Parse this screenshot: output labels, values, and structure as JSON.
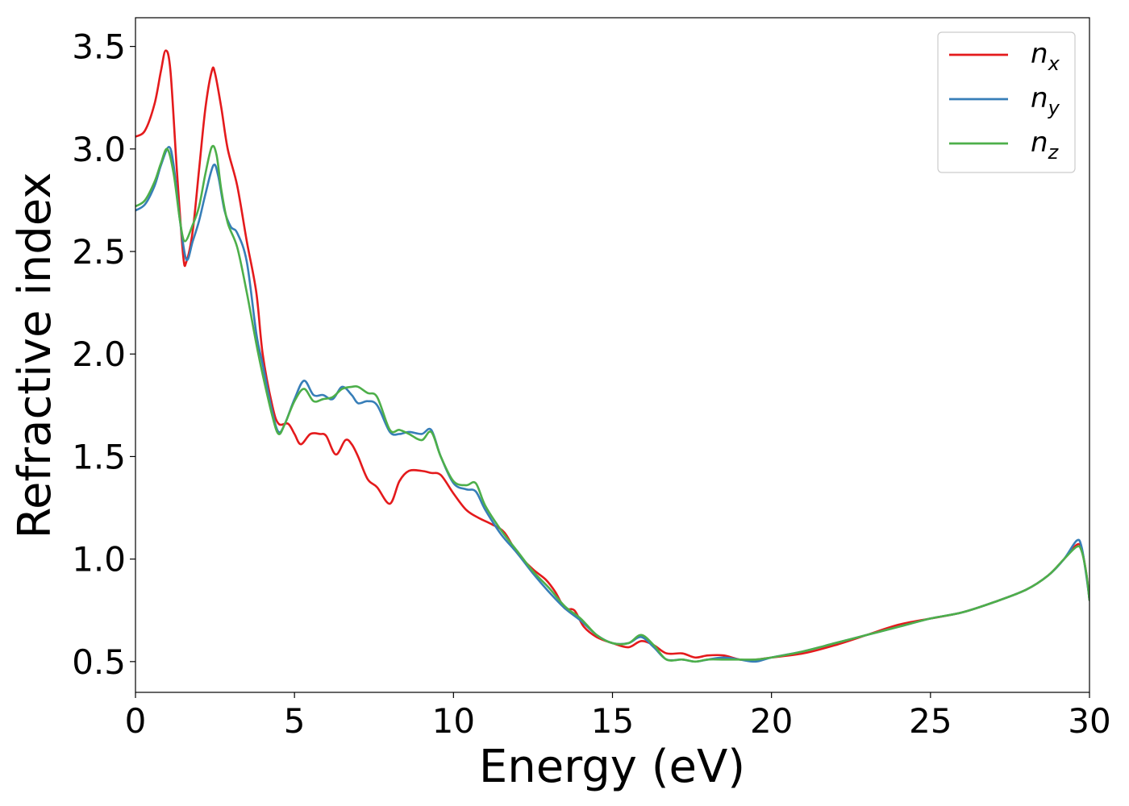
{
  "chart_data": {
    "type": "line",
    "title": "",
    "xlabel": "Energy (eV)",
    "ylabel": "Refractive index",
    "xlim": [
      0,
      30
    ],
    "ylim": [
      0.35,
      3.64
    ],
    "xticks": [
      0,
      5,
      10,
      15,
      20,
      25,
      30
    ],
    "xtick_labels": [
      "0",
      "5",
      "10",
      "15",
      "20",
      "25",
      "30"
    ],
    "yticks": [
      0.5,
      1.0,
      1.5,
      2.0,
      2.5,
      3.0,
      3.5
    ],
    "ytick_labels": [
      "0.5",
      "1.0",
      "1.5",
      "2.0",
      "2.5",
      "3.0",
      "3.5"
    ],
    "grid": false,
    "legend_position": "top-right",
    "series": [
      {
        "name": "n_x",
        "legend_base": "n",
        "legend_sub": "x",
        "color": "#e41a1c",
        "points": [
          [
            0,
            3.06
          ],
          [
            0.3,
            3.09
          ],
          [
            0.6,
            3.22
          ],
          [
            0.8,
            3.38
          ],
          [
            0.95,
            3.48
          ],
          [
            1.1,
            3.38
          ],
          [
            1.3,
            2.9
          ],
          [
            1.5,
            2.48
          ],
          [
            1.6,
            2.45
          ],
          [
            1.8,
            2.6
          ],
          [
            2.0,
            2.9
          ],
          [
            2.2,
            3.2
          ],
          [
            2.4,
            3.38
          ],
          [
            2.5,
            3.37
          ],
          [
            2.7,
            3.2
          ],
          [
            2.9,
            3.0
          ],
          [
            3.2,
            2.82
          ],
          [
            3.5,
            2.55
          ],
          [
            3.8,
            2.3
          ],
          [
            4.0,
            2.0
          ],
          [
            4.3,
            1.75
          ],
          [
            4.5,
            1.66
          ],
          [
            4.8,
            1.66
          ],
          [
            5.0,
            1.61
          ],
          [
            5.2,
            1.56
          ],
          [
            5.5,
            1.61
          ],
          [
            5.8,
            1.61
          ],
          [
            6.0,
            1.6
          ],
          [
            6.3,
            1.51
          ],
          [
            6.6,
            1.58
          ],
          [
            6.8,
            1.56
          ],
          [
            7.0,
            1.5
          ],
          [
            7.3,
            1.39
          ],
          [
            7.6,
            1.35
          ],
          [
            8.0,
            1.27
          ],
          [
            8.3,
            1.38
          ],
          [
            8.6,
            1.43
          ],
          [
            9.0,
            1.43
          ],
          [
            9.3,
            1.42
          ],
          [
            9.6,
            1.41
          ],
          [
            10.0,
            1.32
          ],
          [
            10.4,
            1.24
          ],
          [
            10.8,
            1.2
          ],
          [
            11.2,
            1.17
          ],
          [
            11.6,
            1.13
          ],
          [
            12.0,
            1.03
          ],
          [
            12.5,
            0.95
          ],
          [
            12.9,
            0.9
          ],
          [
            13.2,
            0.84
          ],
          [
            13.5,
            0.76
          ],
          [
            13.8,
            0.75
          ],
          [
            14.1,
            0.67
          ],
          [
            14.5,
            0.62
          ],
          [
            15.0,
            0.59
          ],
          [
            15.5,
            0.57
          ],
          [
            15.9,
            0.6
          ],
          [
            16.3,
            0.58
          ],
          [
            16.7,
            0.54
          ],
          [
            17.2,
            0.54
          ],
          [
            17.6,
            0.52
          ],
          [
            18.0,
            0.53
          ],
          [
            18.5,
            0.53
          ],
          [
            19.0,
            0.51
          ],
          [
            19.5,
            0.51
          ],
          [
            20.0,
            0.52
          ],
          [
            21.0,
            0.54
          ],
          [
            22.0,
            0.58
          ],
          [
            23.0,
            0.63
          ],
          [
            24.0,
            0.68
          ],
          [
            25.0,
            0.71
          ],
          [
            26.0,
            0.74
          ],
          [
            27.0,
            0.79
          ],
          [
            28.0,
            0.85
          ],
          [
            28.7,
            0.92
          ],
          [
            29.2,
            1.0
          ],
          [
            29.6,
            1.07
          ],
          [
            29.75,
            1.05
          ],
          [
            29.9,
            0.93
          ],
          [
            30.0,
            0.8
          ]
        ]
      },
      {
        "name": "n_y",
        "legend_base": "n",
        "legend_sub": "y",
        "color": "#377eb8",
        "points": [
          [
            0,
            2.7
          ],
          [
            0.3,
            2.73
          ],
          [
            0.6,
            2.82
          ],
          [
            0.8,
            2.92
          ],
          [
            1.05,
            3.01
          ],
          [
            1.2,
            2.92
          ],
          [
            1.4,
            2.65
          ],
          [
            1.6,
            2.46
          ],
          [
            1.8,
            2.55
          ],
          [
            2.0,
            2.65
          ],
          [
            2.2,
            2.78
          ],
          [
            2.45,
            2.92
          ],
          [
            2.6,
            2.87
          ],
          [
            2.8,
            2.7
          ],
          [
            3.0,
            2.62
          ],
          [
            3.2,
            2.59
          ],
          [
            3.5,
            2.45
          ],
          [
            3.8,
            2.1
          ],
          [
            4.0,
            1.95
          ],
          [
            4.3,
            1.72
          ],
          [
            4.5,
            1.62
          ],
          [
            4.7,
            1.66
          ],
          [
            5.0,
            1.78
          ],
          [
            5.3,
            1.87
          ],
          [
            5.6,
            1.8
          ],
          [
            5.9,
            1.8
          ],
          [
            6.2,
            1.78
          ],
          [
            6.5,
            1.84
          ],
          [
            6.8,
            1.8
          ],
          [
            7.0,
            1.76
          ],
          [
            7.3,
            1.77
          ],
          [
            7.6,
            1.75
          ],
          [
            8.0,
            1.62
          ],
          [
            8.3,
            1.61
          ],
          [
            8.6,
            1.62
          ],
          [
            9.0,
            1.61
          ],
          [
            9.3,
            1.63
          ],
          [
            9.6,
            1.5
          ],
          [
            10.0,
            1.37
          ],
          [
            10.4,
            1.34
          ],
          [
            10.7,
            1.33
          ],
          [
            11.0,
            1.24
          ],
          [
            11.5,
            1.12
          ],
          [
            12.0,
            1.03
          ],
          [
            12.5,
            0.93
          ],
          [
            13.0,
            0.84
          ],
          [
            13.5,
            0.76
          ],
          [
            14.0,
            0.7
          ],
          [
            14.5,
            0.63
          ],
          [
            15.0,
            0.59
          ],
          [
            15.5,
            0.59
          ],
          [
            15.9,
            0.62
          ],
          [
            16.3,
            0.57
          ],
          [
            16.7,
            0.51
          ],
          [
            17.2,
            0.51
          ],
          [
            17.6,
            0.5
          ],
          [
            18.0,
            0.51
          ],
          [
            18.5,
            0.52
          ],
          [
            19.0,
            0.51
          ],
          [
            19.5,
            0.5
          ],
          [
            20.0,
            0.52
          ],
          [
            21.0,
            0.55
          ],
          [
            22.0,
            0.59
          ],
          [
            23.0,
            0.63
          ],
          [
            24.0,
            0.67
          ],
          [
            25.0,
            0.71
          ],
          [
            26.0,
            0.74
          ],
          [
            27.0,
            0.79
          ],
          [
            28.0,
            0.85
          ],
          [
            28.7,
            0.92
          ],
          [
            29.2,
            1.0
          ],
          [
            29.6,
            1.09
          ],
          [
            29.75,
            1.06
          ],
          [
            29.9,
            0.92
          ],
          [
            30.0,
            0.8
          ]
        ]
      },
      {
        "name": "n_z",
        "legend_base": "n",
        "legend_sub": "z",
        "color": "#4daf4a",
        "points": [
          [
            0,
            2.72
          ],
          [
            0.3,
            2.75
          ],
          [
            0.6,
            2.84
          ],
          [
            0.8,
            2.93
          ],
          [
            1.0,
            3.0
          ],
          [
            1.2,
            2.88
          ],
          [
            1.4,
            2.65
          ],
          [
            1.55,
            2.55
          ],
          [
            1.8,
            2.63
          ],
          [
            2.0,
            2.72
          ],
          [
            2.2,
            2.88
          ],
          [
            2.4,
            3.01
          ],
          [
            2.55,
            2.97
          ],
          [
            2.7,
            2.8
          ],
          [
            2.9,
            2.64
          ],
          [
            3.2,
            2.52
          ],
          [
            3.5,
            2.3
          ],
          [
            3.8,
            2.05
          ],
          [
            4.0,
            1.9
          ],
          [
            4.3,
            1.7
          ],
          [
            4.5,
            1.61
          ],
          [
            4.7,
            1.66
          ],
          [
            5.0,
            1.77
          ],
          [
            5.3,
            1.83
          ],
          [
            5.6,
            1.77
          ],
          [
            5.9,
            1.78
          ],
          [
            6.2,
            1.79
          ],
          [
            6.5,
            1.83
          ],
          [
            6.8,
            1.84
          ],
          [
            7.0,
            1.84
          ],
          [
            7.3,
            1.81
          ],
          [
            7.6,
            1.79
          ],
          [
            8.0,
            1.63
          ],
          [
            8.3,
            1.63
          ],
          [
            8.6,
            1.61
          ],
          [
            9.0,
            1.58
          ],
          [
            9.3,
            1.62
          ],
          [
            9.6,
            1.5
          ],
          [
            10.0,
            1.38
          ],
          [
            10.4,
            1.36
          ],
          [
            10.7,
            1.37
          ],
          [
            11.0,
            1.26
          ],
          [
            11.5,
            1.14
          ],
          [
            12.0,
            1.04
          ],
          [
            12.5,
            0.94
          ],
          [
            13.0,
            0.86
          ],
          [
            13.5,
            0.77
          ],
          [
            14.0,
            0.71
          ],
          [
            14.5,
            0.63
          ],
          [
            15.0,
            0.59
          ],
          [
            15.5,
            0.59
          ],
          [
            15.9,
            0.63
          ],
          [
            16.3,
            0.58
          ],
          [
            16.7,
            0.51
          ],
          [
            17.2,
            0.51
          ],
          [
            17.6,
            0.5
          ],
          [
            18.0,
            0.51
          ],
          [
            18.5,
            0.51
          ],
          [
            19.0,
            0.51
          ],
          [
            19.5,
            0.51
          ],
          [
            20.0,
            0.52
          ],
          [
            21.0,
            0.55
          ],
          [
            22.0,
            0.59
          ],
          [
            23.0,
            0.63
          ],
          [
            24.0,
            0.67
          ],
          [
            25.0,
            0.71
          ],
          [
            26.0,
            0.74
          ],
          [
            27.0,
            0.79
          ],
          [
            28.0,
            0.85
          ],
          [
            28.7,
            0.92
          ],
          [
            29.2,
            1.0
          ],
          [
            29.6,
            1.06
          ],
          [
            29.75,
            1.04
          ],
          [
            29.9,
            0.93
          ],
          [
            30.0,
            0.8
          ]
        ]
      }
    ]
  }
}
